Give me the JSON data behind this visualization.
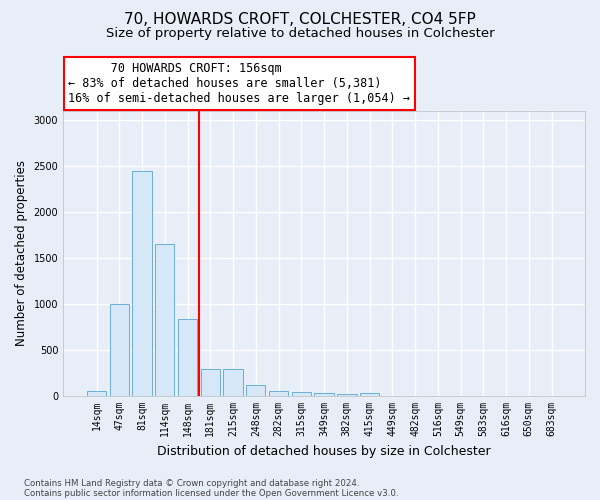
{
  "title_line1": "70, HOWARDS CROFT, COLCHESTER, CO4 5FP",
  "title_line2": "Size of property relative to detached houses in Colchester",
  "xlabel": "Distribution of detached houses by size in Colchester",
  "ylabel": "Number of detached properties",
  "categories": [
    "14sqm",
    "47sqm",
    "81sqm",
    "114sqm",
    "148sqm",
    "181sqm",
    "215sqm",
    "248sqm",
    "282sqm",
    "315sqm",
    "349sqm",
    "382sqm",
    "415sqm",
    "449sqm",
    "482sqm",
    "516sqm",
    "549sqm",
    "583sqm",
    "616sqm",
    "650sqm",
    "683sqm"
  ],
  "values": [
    55,
    1000,
    2450,
    1650,
    840,
    290,
    290,
    125,
    55,
    45,
    30,
    20,
    30,
    0,
    0,
    0,
    0,
    0,
    0,
    0,
    0
  ],
  "bar_color": "#d6e8f7",
  "bar_edge_color": "#6baed6",
  "vline_x": 4.5,
  "annotation_text": "      70 HOWARDS CROFT: 156sqm\n← 83% of detached houses are smaller (5,381)\n16% of semi-detached houses are larger (1,054) →",
  "ylim": [
    0,
    3100
  ],
  "footnote_line1": "Contains HM Land Registry data © Crown copyright and database right 2024.",
  "footnote_line2": "Contains public sector information licensed under the Open Government Licence v3.0.",
  "background_color": "#e8eef8",
  "grid_color": "#ffffff",
  "title_fontsize": 11,
  "subtitle_fontsize": 9.5,
  "ylabel_fontsize": 8.5,
  "xlabel_fontsize": 9,
  "tick_fontsize": 7,
  "annot_fontsize": 8.5,
  "footnote_fontsize": 6.2
}
